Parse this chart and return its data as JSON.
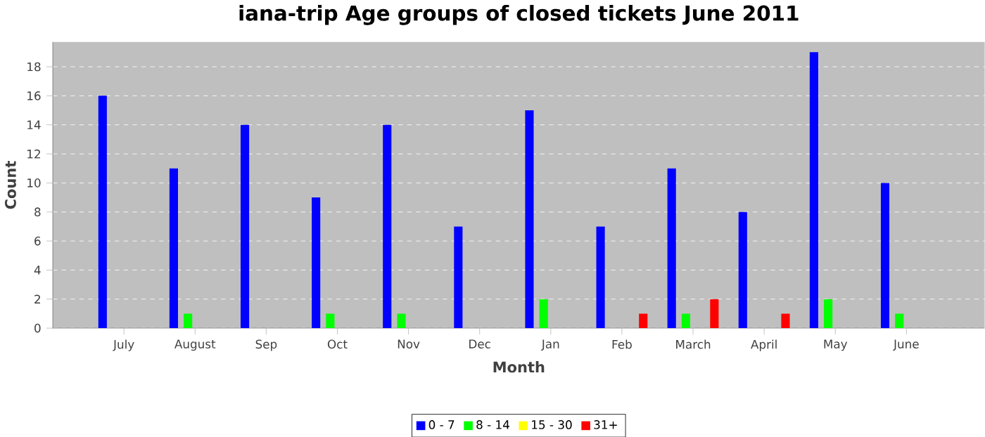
{
  "chart_data": {
    "type": "bar",
    "title": "iana-trip Age groups of closed tickets June 2011",
    "xlabel": "Month",
    "ylabel": "Count",
    "categories": [
      "July",
      "August",
      "Sep",
      "Oct",
      "Nov",
      "Dec",
      "Jan",
      "Feb",
      "March",
      "April",
      "May",
      "June"
    ],
    "series": [
      {
        "name": "0 - 7",
        "color": "#0000ff",
        "values": [
          16,
          11,
          14,
          9,
          14,
          7,
          15,
          7,
          11,
          8,
          19,
          10
        ]
      },
      {
        "name": "8 - 14",
        "color": "#00ff00",
        "values": [
          0,
          1,
          0,
          1,
          1,
          0,
          2,
          0,
          1,
          0,
          2,
          1
        ]
      },
      {
        "name": "15 - 30",
        "color": "#ffff00",
        "values": [
          0,
          0,
          0,
          0,
          0,
          0,
          0,
          0,
          0,
          0,
          0,
          0
        ]
      },
      {
        "name": "31+",
        "color": "#ff0000",
        "values": [
          0,
          0,
          0,
          0,
          0,
          0,
          0,
          1,
          2,
          1,
          0,
          0
        ]
      }
    ],
    "ylim": [
      0,
      19.7
    ],
    "yticks": [
      0,
      2,
      4,
      6,
      8,
      10,
      12,
      14,
      16,
      18
    ],
    "grid": "y",
    "legend": "bottom"
  }
}
